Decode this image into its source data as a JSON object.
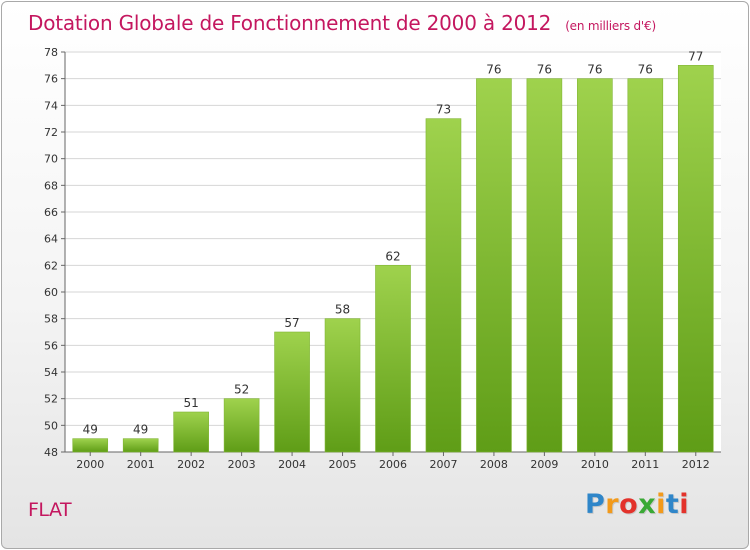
{
  "title": "Dotation Globale de Fonctionnement de 2000 à 2012",
  "unit_note": "(en milliers d'€)",
  "commune": "FLAT",
  "logo": {
    "letters": [
      "P",
      "r",
      "o",
      "x",
      "i",
      "t",
      "i"
    ],
    "colors": [
      "#2f86c9",
      "#f29a1b",
      "#e3322b",
      "#3aa935",
      "#f29a1b",
      "#2f86c9",
      "#e3322b"
    ]
  },
  "colors": {
    "bar_light": "#9fd24d",
    "bar_dark": "#5f9d17",
    "title": "#c4175f",
    "axis": "#666666",
    "grid": "#d6d6d6"
  },
  "chart_data": {
    "type": "bar",
    "title": "Dotation Globale de Fonctionnement de 2000 à 2012",
    "xlabel": "",
    "ylabel": "en milliers d'€",
    "categories": [
      "2000",
      "2001",
      "2002",
      "2003",
      "2004",
      "2005",
      "2006",
      "2007",
      "2008",
      "2009",
      "2010",
      "2011",
      "2012"
    ],
    "values": [
      49,
      49,
      51,
      52,
      57,
      58,
      62,
      73,
      76,
      76,
      76,
      76,
      77
    ],
    "ylim": [
      48,
      78
    ],
    "yticks": [
      48,
      50,
      52,
      54,
      56,
      58,
      60,
      62,
      64,
      66,
      68,
      70,
      72,
      74,
      76,
      78
    ],
    "grid": true,
    "data_labels": true
  }
}
